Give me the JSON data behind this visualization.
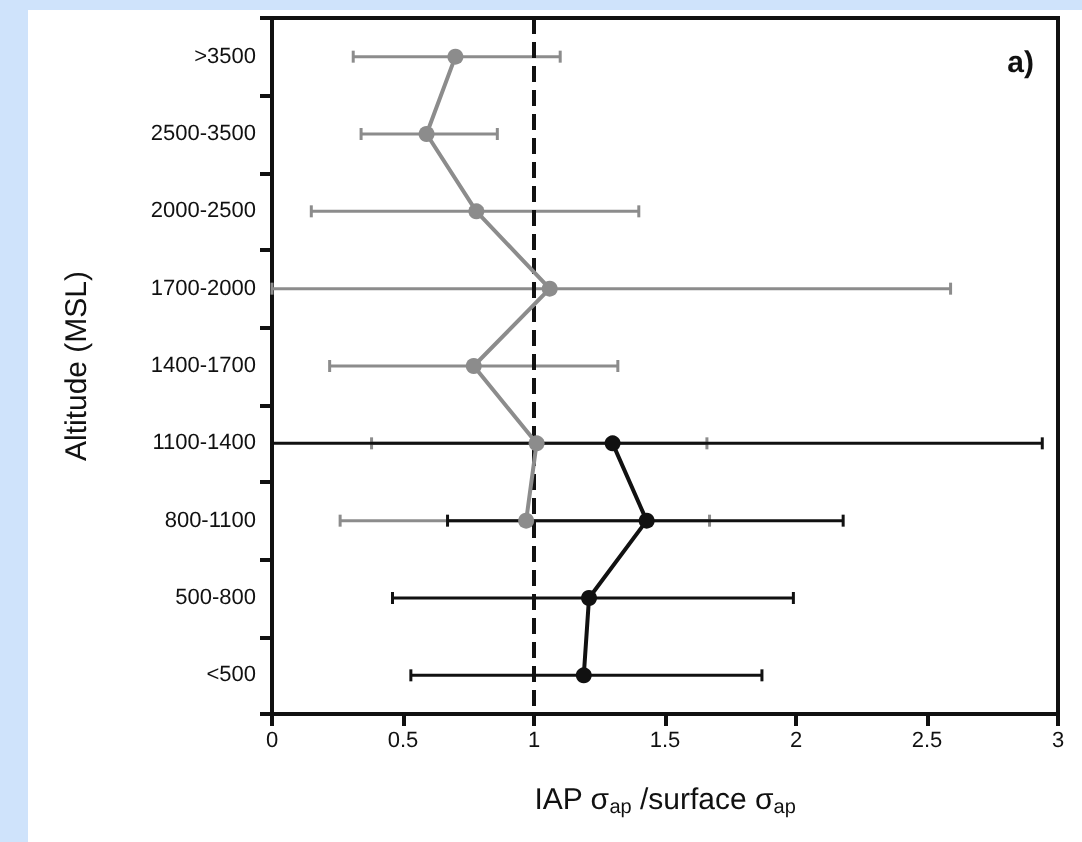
{
  "chart_data": {
    "type": "line",
    "orientation": "horizontal",
    "xlabel": "IAP σ$_{ap}$ /surface σ$_{ap}$",
    "ylabel": "Altitude (MSL)",
    "categories": [
      ">3500",
      "2500-3500",
      "2000-2500",
      "1700-2000",
      "1400-1700",
      "1100-1400",
      "800-1100",
      "500-800",
      "<500"
    ],
    "series": [
      {
        "color": "#8c8c8c",
        "values": [
          0.7,
          0.59,
          0.78,
          1.06,
          0.77,
          1.01,
          0.97,
          null,
          null
        ],
        "errors": [
          [
            0.31,
            1.1
          ],
          [
            0.34,
            0.86
          ],
          [
            0.15,
            1.4
          ],
          [
            0,
            2.59
          ],
          [
            0.22,
            1.32
          ],
          [
            0.38,
            1.66
          ],
          [
            0.26,
            1.67
          ],
          null,
          null
        ]
      },
      {
        "color": "#111111",
        "values": [
          null,
          null,
          null,
          null,
          null,
          1.3,
          1.43,
          1.21,
          1.19
        ],
        "errors": [
          null,
          null,
          null,
          null,
          null,
          [
            0,
            2.94
          ],
          [
            0.67,
            2.18
          ],
          [
            0.46,
            1.99
          ],
          [
            0.53,
            1.87
          ]
        ]
      }
    ],
    "xlim": [
      0,
      3
    ],
    "xticks": [
      0,
      0.5,
      1,
      1.5,
      2,
      2.5,
      3
    ],
    "ref_lines": [
      {
        "axis": "x",
        "value": 1,
        "line_style": "dashed",
        "color": "#111111"
      }
    ],
    "annotations": [
      "a)"
    ],
    "marker": "circle",
    "line_style": "solid",
    "grid": false
  }
}
